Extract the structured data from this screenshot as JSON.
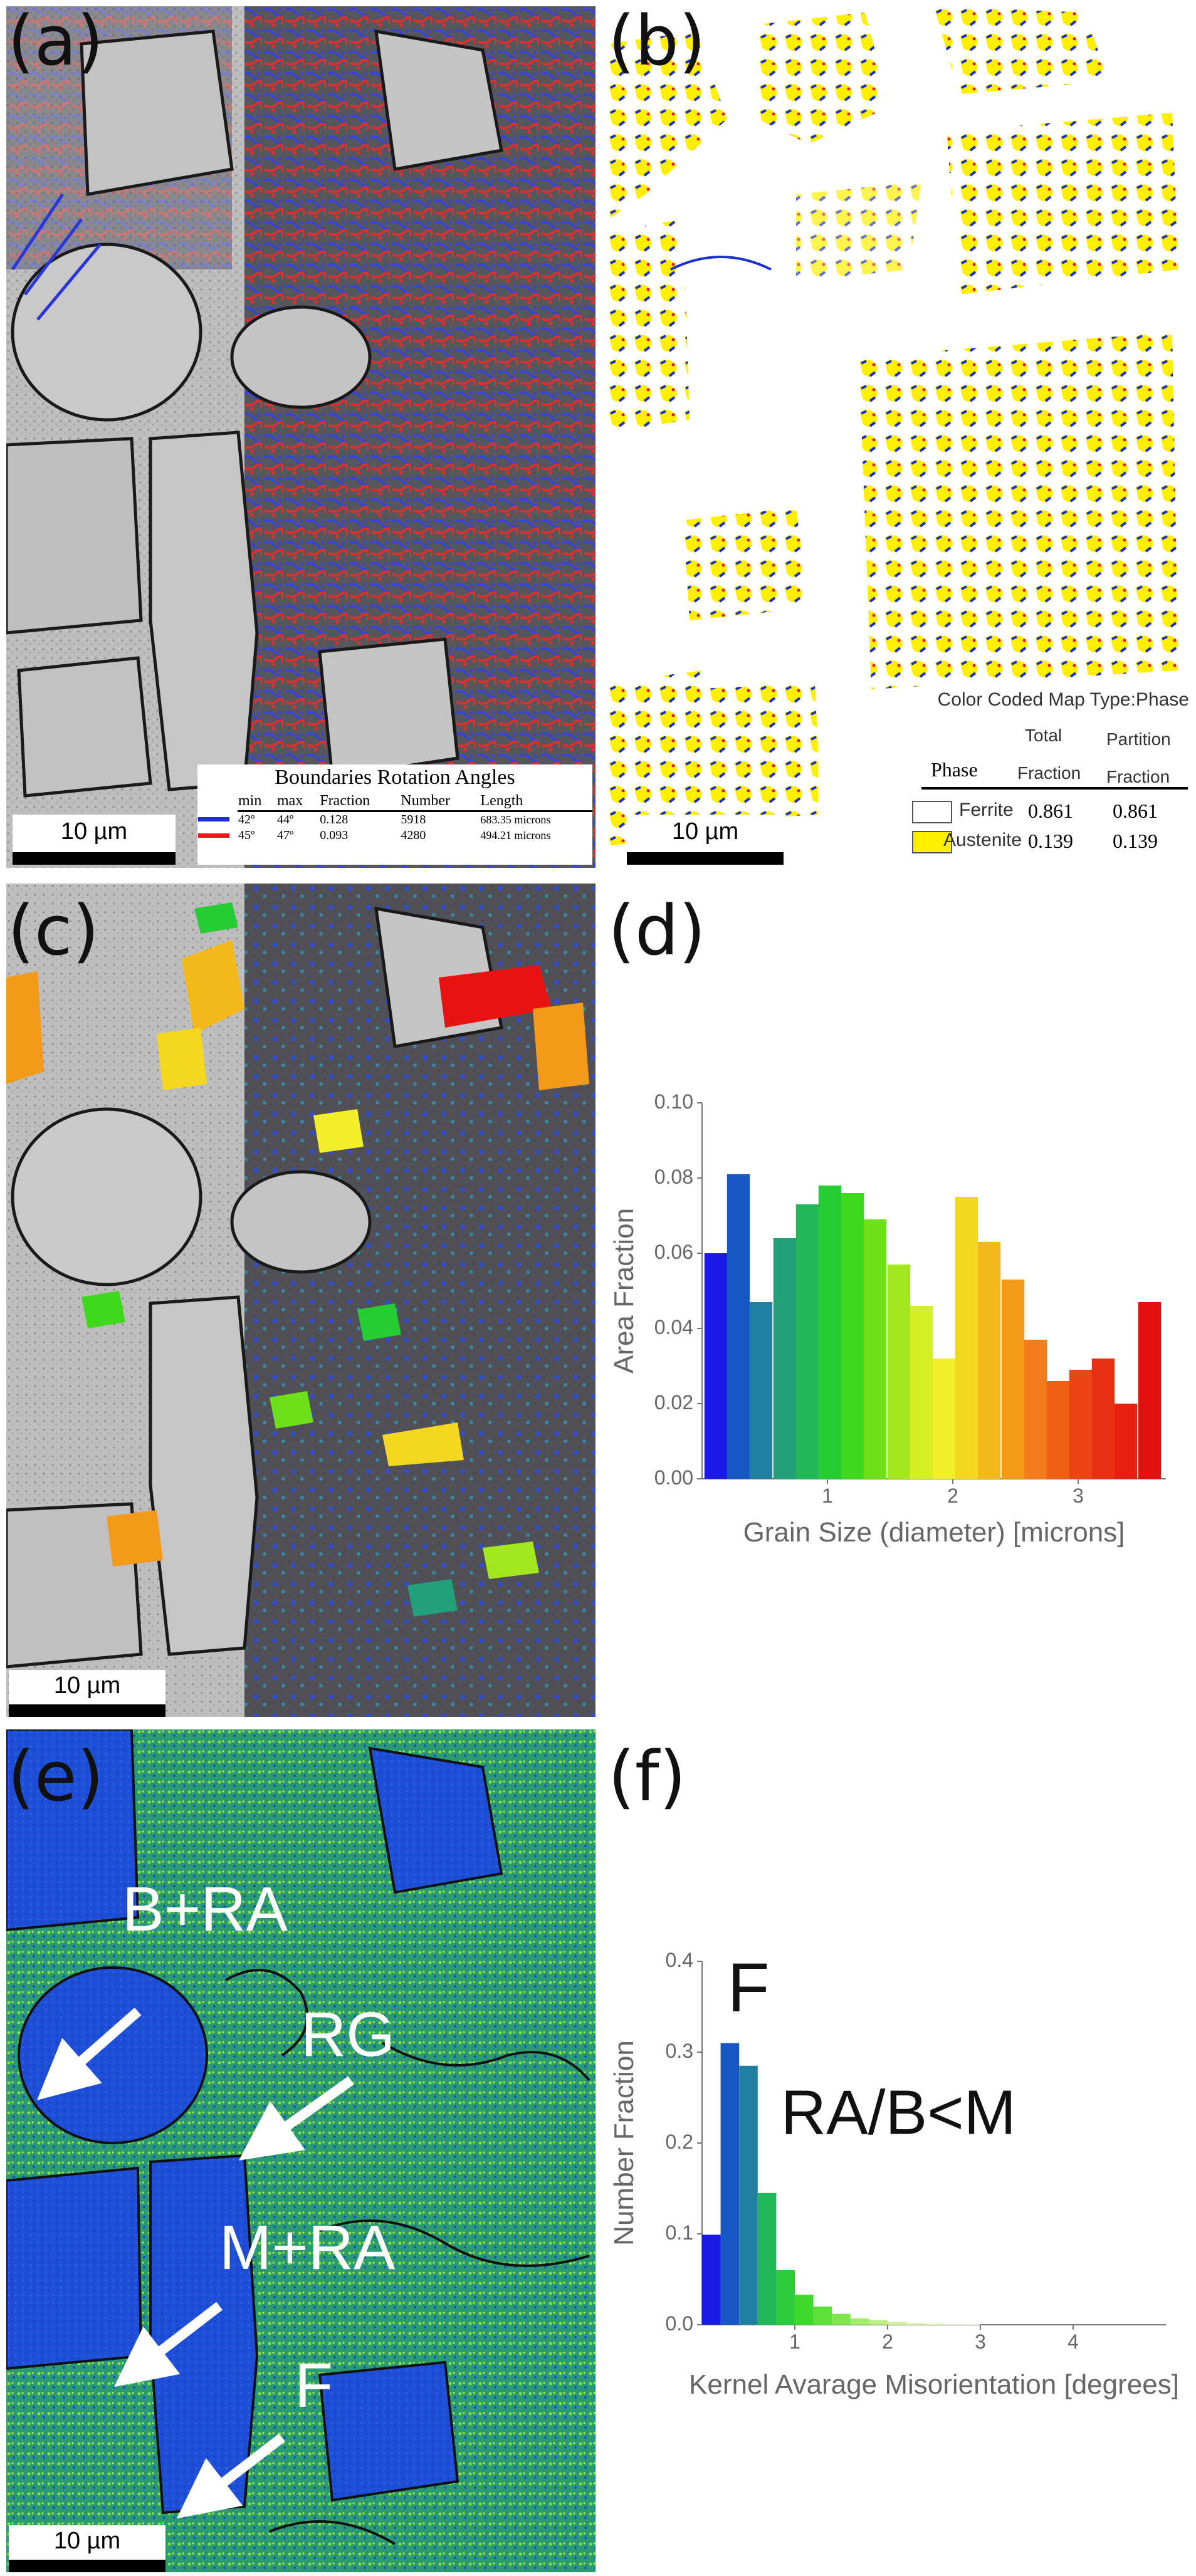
{
  "panels": {
    "a": {
      "label": "(a)"
    },
    "b": {
      "label": "(b)"
    },
    "c": {
      "label": "(c)"
    },
    "d": {
      "label": "(d)"
    },
    "e": {
      "label": "(e)"
    },
    "f": {
      "label": "(f)"
    }
  },
  "scalebar": "10 µm",
  "boundaries": {
    "title": "Boundaries Rotation Angles",
    "headers": [
      "min",
      "max",
      "Fraction",
      "Number",
      "Length"
    ],
    "rows": [
      {
        "color": "#1f2fd0",
        "min": "42º",
        "max": "44º",
        "fraction": "0.128",
        "number": "5918",
        "length": "683.35 microns"
      },
      {
        "color": "#e01b1b",
        "min": "45º",
        "max": "47º",
        "fraction": "0.093",
        "number": "4280",
        "length": "494.21 microns"
      }
    ]
  },
  "phase_table": {
    "title": "Color Coded Map Type:Phase",
    "headers": {
      "phase": "Phase",
      "total_1": "Total",
      "total_2": "Fraction",
      "partition_1": "Partition",
      "partition_2": "Fraction"
    },
    "rows": [
      {
        "swatch": "#ffffff",
        "name": "Ferrite",
        "total": "0.861",
        "partition": "0.861"
      },
      {
        "swatch": "#ffee00",
        "name": "Austenite",
        "total": "0.139",
        "partition": "0.139"
      }
    ]
  },
  "annotations_e": {
    "a1": "B+RA",
    "a2": "RG",
    "a3": "M+RA",
    "a4": "F"
  },
  "annotations_f": {
    "peak": "F",
    "ratio": "RA/B<M"
  },
  "chart_data": [
    {
      "type": "bar",
      "panel": "d",
      "xlabel": "Grain Size (diameter) [microns]",
      "ylabel": "Area Fraction",
      "xlim": [
        0,
        3.7
      ],
      "ylim": [
        0,
        0.1
      ],
      "xticks": [
        1,
        2,
        3
      ],
      "yticks": [
        0.0,
        0.02,
        0.04,
        0.06,
        0.08,
        0.1
      ],
      "ytick_labels": [
        "0.00",
        "0.02",
        "0.04",
        "0.06",
        "0.08",
        "0.10"
      ],
      "bin_width": 0.182,
      "x": [
        0.11,
        0.29,
        0.47,
        0.66,
        0.84,
        1.02,
        1.2,
        1.38,
        1.57,
        1.75,
        1.93,
        2.11,
        2.29,
        2.48,
        2.66,
        2.84,
        3.02,
        3.2,
        3.38,
        3.57
      ],
      "values": [
        0.06,
        0.081,
        0.047,
        0.064,
        0.073,
        0.078,
        0.076,
        0.069,
        0.057,
        0.046,
        0.032,
        0.075,
        0.063,
        0.053,
        0.037,
        0.026,
        0.029,
        0.032,
        0.02,
        0.047
      ],
      "colors": [
        "#1a1ae6",
        "#1757c4",
        "#1f7fa0",
        "#21a07a",
        "#21b85a",
        "#26cc33",
        "#3ed91c",
        "#6de01a",
        "#a3e81f",
        "#d4ee22",
        "#f2ef2a",
        "#f4d81f",
        "#f4b81a",
        "#f49a1a",
        "#f47c1a",
        "#ef5f16",
        "#eb4514",
        "#e83012",
        "#e61f10",
        "#e21010"
      ]
    },
    {
      "type": "bar",
      "panel": "f",
      "xlabel": "Kernel Avarage Misorientation [degrees]",
      "ylabel": "Number Fraction",
      "xlim": [
        0,
        5
      ],
      "ylim": [
        0,
        0.4
      ],
      "xticks": [
        1,
        2,
        3,
        4
      ],
      "yticks": [
        0.0,
        0.1,
        0.2,
        0.3,
        0.4
      ],
      "ytick_labels": [
        "0.0",
        "0.1",
        "0.2",
        "0.3",
        "0.4"
      ],
      "bin_width": 0.2,
      "x": [
        0.1,
        0.3,
        0.5,
        0.7,
        0.9,
        1.1,
        1.3,
        1.5,
        1.7,
        1.9,
        2.1,
        2.3,
        2.5,
        2.7,
        2.9
      ],
      "values": [
        0.099,
        0.31,
        0.285,
        0.145,
        0.06,
        0.033,
        0.02,
        0.012,
        0.007,
        0.005,
        0.003,
        0.002,
        0.002,
        0.001,
        0.001
      ],
      "colors": [
        "#1a1ae6",
        "#1757c4",
        "#1f7fa0",
        "#21b85a",
        "#2ccc3a",
        "#3ed92c",
        "#5ee03a",
        "#7fe64e",
        "#9fec66",
        "#b8f07e",
        "#cff49a",
        "#dff7b4",
        "#ebf9cc",
        "#f3fbe0",
        "#f8fdee"
      ]
    }
  ]
}
